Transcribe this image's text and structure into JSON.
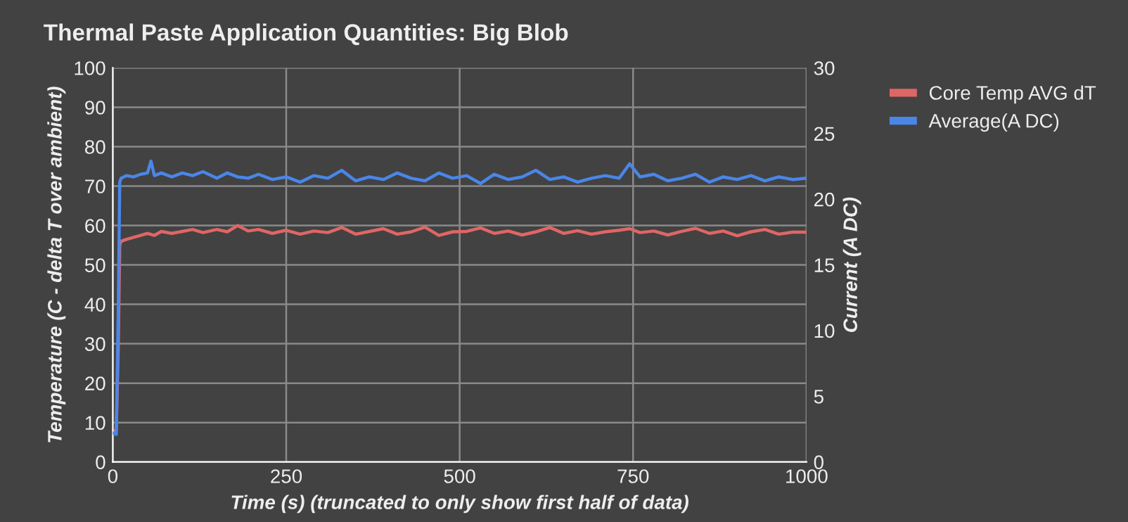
{
  "chart_data": {
    "type": "line",
    "title": "Thermal Paste Application Quantities: Big Blob",
    "xlabel": "Time (s) (truncated to only show first half of data)",
    "ylabel": "Temperature (C - delta T over ambient)",
    "y2label": "Current (A DC)",
    "xlim": [
      0,
      1000
    ],
    "xticks": [
      0,
      250,
      500,
      750,
      1000
    ],
    "ylim": [
      0,
      100
    ],
    "yticks": [
      0,
      10,
      20,
      30,
      40,
      50,
      60,
      70,
      80,
      90,
      100
    ],
    "y2lim": [
      0,
      30
    ],
    "y2ticks": [
      0,
      5,
      10,
      15,
      20,
      25,
      30
    ],
    "grid": true,
    "legend": "top right",
    "line_style": "solid",
    "marker": "none",
    "series": [
      {
        "name": "Core Temp AVG dT",
        "color": "#e06666",
        "x": [
          0,
          5,
          8,
          10,
          12,
          20,
          30,
          40,
          50,
          60,
          70,
          85,
          100,
          115,
          130,
          150,
          165,
          180,
          195,
          210,
          230,
          250,
          270,
          290,
          310,
          330,
          350,
          370,
          390,
          410,
          430,
          450,
          470,
          490,
          510,
          530,
          550,
          570,
          590,
          610,
          630,
          650,
          670,
          690,
          710,
          730,
          745,
          760,
          780,
          800,
          820,
          840,
          860,
          880,
          900,
          920,
          940,
          960,
          980,
          1000
        ],
        "values": [
          8,
          8,
          30,
          55,
          56,
          56.5,
          57,
          57.5,
          58,
          57.5,
          58.5,
          58,
          58.5,
          59,
          58.2,
          59,
          58.4,
          60,
          58.6,
          59,
          58,
          58.8,
          57.8,
          58.6,
          58.2,
          59.5,
          57.8,
          58.5,
          59.2,
          57.8,
          58.4,
          59.6,
          57.5,
          58.4,
          58.5,
          59.4,
          58,
          58.6,
          57.6,
          58.4,
          59.5,
          58,
          58.7,
          57.8,
          58.4,
          58.8,
          59.2,
          58.2,
          58.6,
          57.6,
          58.5,
          59.3,
          58,
          58.6,
          57.4,
          58.4,
          59,
          57.8,
          58.3,
          58.3
        ]
      },
      {
        "name": "Average(A DC)",
        "color": "#4a86e8",
        "axis": "y2",
        "x": [
          0,
          5,
          8,
          10,
          12,
          20,
          30,
          40,
          50,
          55,
          60,
          70,
          85,
          100,
          115,
          130,
          150,
          165,
          180,
          195,
          210,
          230,
          250,
          270,
          290,
          310,
          330,
          350,
          370,
          390,
          410,
          430,
          450,
          470,
          490,
          510,
          530,
          550,
          570,
          590,
          610,
          630,
          650,
          670,
          690,
          710,
          730,
          745,
          760,
          780,
          800,
          820,
          840,
          860,
          880,
          900,
          920,
          940,
          960,
          980,
          1000
        ],
        "values": [
          2.2,
          2.1,
          12,
          21.3,
          21.6,
          21.8,
          21.7,
          21.9,
          22.0,
          22.9,
          21.8,
          22.0,
          21.7,
          22.0,
          21.8,
          22.1,
          21.6,
          22.0,
          21.7,
          21.6,
          21.9,
          21.5,
          21.7,
          21.3,
          21.8,
          21.6,
          22.2,
          21.4,
          21.7,
          21.5,
          22.0,
          21.6,
          21.4,
          22.0,
          21.6,
          21.8,
          21.2,
          21.9,
          21.5,
          21.7,
          22.2,
          21.5,
          21.7,
          21.3,
          21.6,
          21.8,
          21.6,
          22.7,
          21.7,
          21.9,
          21.4,
          21.6,
          21.9,
          21.3,
          21.7,
          21.5,
          21.8,
          21.4,
          21.7,
          21.5,
          21.6
        ]
      }
    ]
  }
}
